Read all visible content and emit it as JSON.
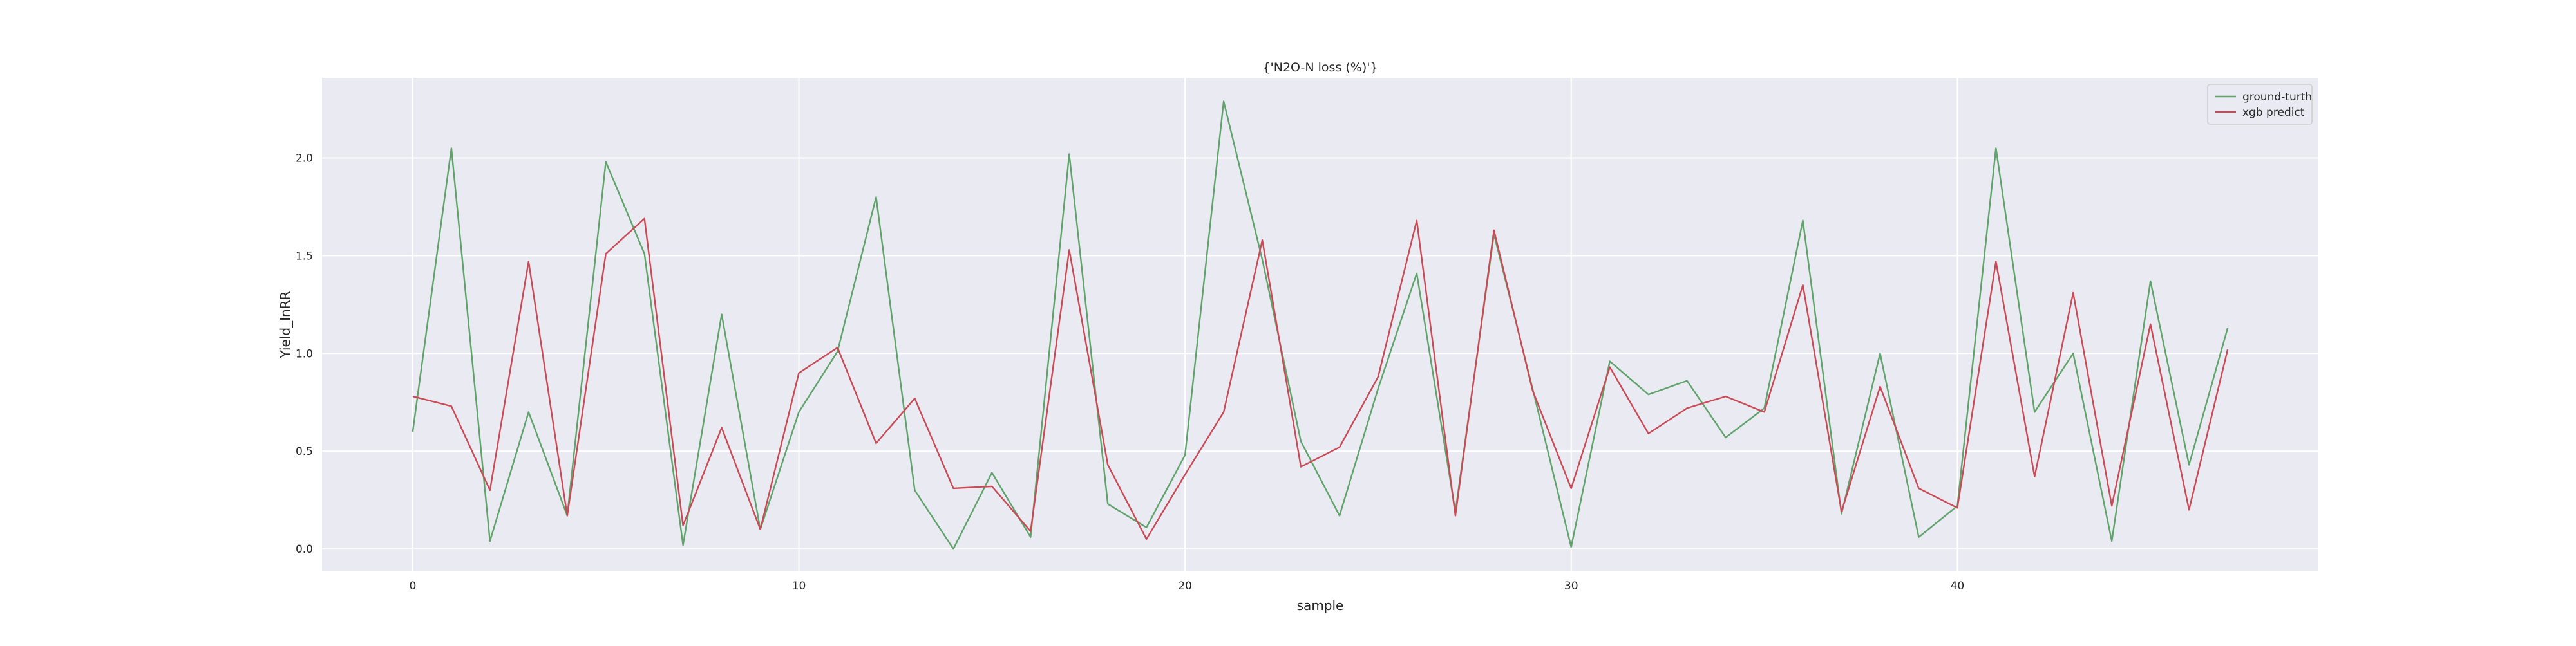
{
  "chart_data": {
    "type": "line",
    "title": "{'N2O-N loss (%)'}",
    "xlabel": "sample",
    "ylabel": "Yield_InRR",
    "xlim": [
      -2.35,
      49.35
    ],
    "ylim": [
      -0.115,
      2.41
    ],
    "x_ticks": [
      0,
      10,
      20,
      30,
      40
    ],
    "y_ticks": [
      0.0,
      0.5,
      1.0,
      1.5,
      2.0
    ],
    "y_tick_labels": [
      "0.0",
      "0.5",
      "1.0",
      "1.5",
      "2.0"
    ],
    "grid": true,
    "legend_position": "top-right",
    "x": [
      0,
      1,
      2,
      3,
      4,
      5,
      6,
      7,
      8,
      9,
      10,
      11,
      12,
      13,
      14,
      15,
      16,
      17,
      18,
      19,
      20,
      21,
      22,
      23,
      24,
      25,
      26,
      27,
      28,
      29,
      30,
      31,
      32,
      33,
      34,
      35,
      36,
      37,
      38,
      39,
      40,
      41,
      42,
      43,
      44,
      45,
      46,
      47
    ],
    "series": [
      {
        "name": "ground-turth",
        "color": "#5fa36b",
        "values": [
          0.6,
          2.05,
          0.04,
          0.7,
          0.17,
          1.98,
          1.51,
          0.02,
          1.2,
          0.1,
          0.7,
          1.01,
          1.8,
          0.3,
          0.0,
          0.39,
          0.06,
          2.02,
          0.23,
          0.11,
          0.48,
          2.29,
          1.48,
          0.55,
          0.17,
          0.82,
          1.41,
          0.19,
          1.61,
          0.82,
          0.01,
          0.96,
          0.79,
          0.86,
          0.57,
          0.72,
          1.68,
          0.18,
          1.0,
          0.06,
          0.22,
          2.05,
          0.7,
          1.0,
          0.04,
          1.37,
          0.43,
          1.13
        ]
      },
      {
        "name": "xgb predict",
        "color": "#c94a55",
        "values": [
          0.78,
          0.73,
          0.3,
          1.47,
          0.17,
          1.51,
          1.69,
          0.12,
          0.62,
          0.1,
          0.9,
          1.03,
          0.54,
          0.77,
          0.31,
          0.32,
          0.09,
          1.53,
          0.43,
          0.05,
          0.38,
          0.7,
          1.58,
          0.42,
          0.52,
          0.88,
          1.68,
          0.17,
          1.63,
          0.81,
          0.31,
          0.93,
          0.59,
          0.72,
          0.78,
          0.7,
          1.35,
          0.19,
          0.83,
          0.31,
          0.21,
          1.47,
          0.37,
          1.31,
          0.22,
          1.15,
          0.2,
          1.02
        ]
      }
    ]
  },
  "colors": {
    "plot_background": "#eaeaf2",
    "grid": "#ffffff",
    "legend_border": "#cccccc",
    "legend_background": "#eaeaf2"
  }
}
